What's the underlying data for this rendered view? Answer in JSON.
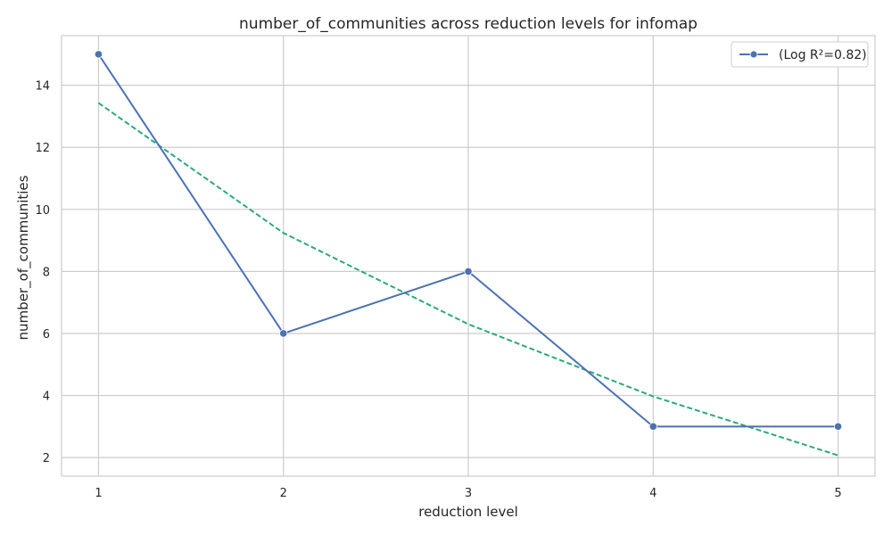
{
  "chart_data": {
    "type": "line",
    "title": "number_of_communities across reduction levels for infomap",
    "xlabel": "reduction level",
    "ylabel": "number_of_communities",
    "x": [
      1,
      2,
      3,
      4,
      5
    ],
    "xticks": [
      1,
      2,
      3,
      4,
      5
    ],
    "yticks": [
      2,
      4,
      6,
      8,
      10,
      12,
      14
    ],
    "xlim": [
      0.8,
      5.2
    ],
    "ylim": [
      1.4,
      15.6
    ],
    "grid": true,
    "legend_placement": "top-right",
    "series": [
      {
        "name": "(Log R²=0.82)",
        "values": [
          15,
          6,
          8,
          3,
          3
        ],
        "color": "#4c72b0",
        "style": "solid",
        "marker": "circle"
      },
      {
        "values": [
          13.43,
          9.24,
          6.3,
          3.97,
          2.07
        ],
        "color": "#2ca87f",
        "style": "dashed",
        "marker": "none"
      }
    ]
  }
}
